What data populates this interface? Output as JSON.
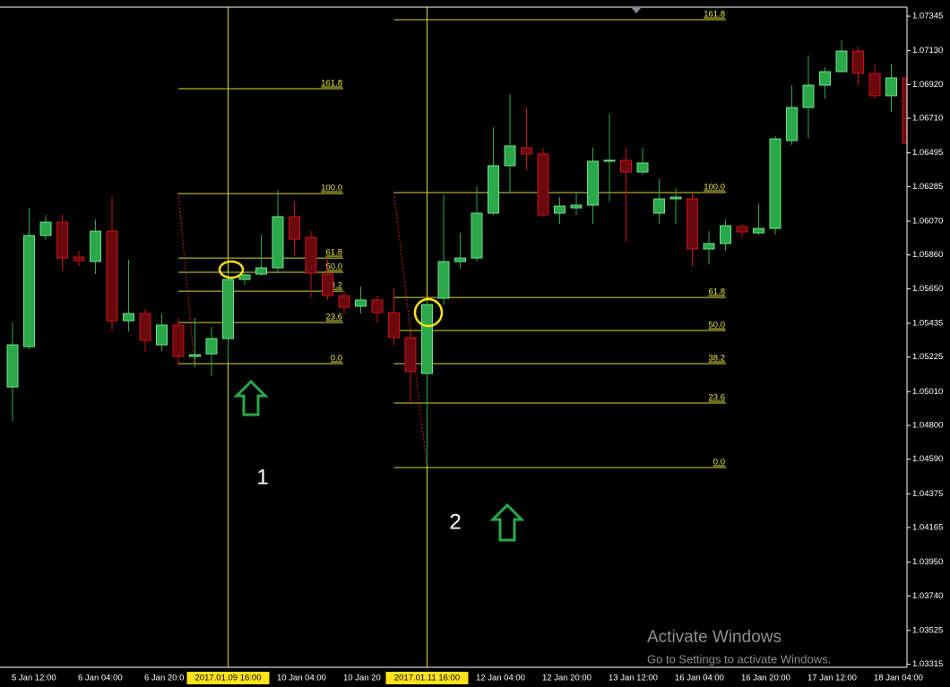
{
  "chart_data": {
    "type": "candlestick",
    "categories": [
      "5 Jan 12:00",
      null,
      null,
      null,
      "6 Jan 04:00",
      null,
      null,
      null,
      "6 Jan 20:0",
      null,
      null,
      null,
      null,
      "2017.01.09 16:00",
      null,
      null,
      "10 Jan 04:00",
      null,
      null,
      null,
      "10 Jan 20",
      null,
      null,
      null,
      null,
      "2017.01.11 16:00",
      null,
      null,
      "12 Jan 04:00",
      null,
      null,
      null,
      "12 Jan 20:00",
      null,
      null,
      null,
      "13 Jan 12:00",
      null,
      null,
      null,
      "16 Jan 04:00",
      null,
      null,
      null,
      "16 Jan 20:00",
      null,
      null,
      null,
      "17 Jan 12:00",
      null,
      null,
      null,
      "18 Jan 04:00",
      null,
      null
    ],
    "open": [
      1.05039,
      1.0529,
      1.05981,
      1.06064,
      1.05847,
      1.05819,
      1.06008,
      1.05451,
      1.05496,
      1.05301,
      1.05424,
      1.05229,
      1.05245,
      1.0534,
      1.05708,
      1.05741,
      1.0578,
      1.06098,
      1.0597,
      1.05741,
      1.05607,
      1.05541,
      1.0558,
      1.05502,
      1.05346,
      1.05123,
      1.05591,
      1.05819,
      1.05841,
      1.0612,
      1.06415,
      1.06527,
      1.06488,
      1.0612,
      1.06153,
      1.0617,
      1.06443,
      1.06449,
      1.06376,
      1.0612,
      1.06209,
      1.06209,
      1.05897,
      1.05931,
      1.06036,
      1.05997,
      1.06025,
      1.06571,
      1.06777,
      1.06916,
      1.07,
      1.07128,
      1.06989,
      1.0685,
      1.06961
    ],
    "high": [
      1.0544,
      1.06153,
      1.06109,
      1.06109,
      1.05886,
      1.06081,
      1.0622,
      1.0583,
      1.05524,
      1.05496,
      1.05468,
      1.05468,
      1.05413,
      1.05747,
      1.05747,
      1.05986,
      1.06265,
      1.06192,
      1.06008,
      1.0583,
      1.05635,
      1.05663,
      1.05607,
      1.05652,
      1.05385,
      1.0558,
      1.06231,
      1.05997,
      1.06287,
      1.06655,
      1.06861,
      1.06777,
      1.06527,
      1.0622,
      1.06248,
      1.06527,
      1.06738,
      1.06527,
      1.06527,
      1.06332,
      1.06276,
      1.06248,
      1.06008,
      1.06081,
      1.06053,
      1.06176,
      1.06599,
      1.06916,
      1.071,
      1.07028,
      1.07195,
      1.07156,
      1.07045,
      1.07045,
      1.06972
    ],
    "low": [
      1.04828,
      1.05273,
      1.05953,
      1.05763,
      1.05791,
      1.05741,
      1.05385,
      1.05385,
      1.05257,
      1.05262,
      1.05173,
      1.05162,
      1.05106,
      1.0519,
      1.05674,
      1.0573,
      1.05747,
      1.05858,
      1.05596,
      1.0558,
      1.05496,
      1.05496,
      1.0544,
      1.05301,
      1.04939,
      1.04549,
      1.05552,
      1.05775,
      1.05819,
      1.06109,
      1.06248,
      1.06387,
      1.06098,
      1.06053,
      1.06109,
      1.06053,
      1.06192,
      1.05942,
      1.06359,
      1.06053,
      1.06053,
      1.05791,
      1.05802,
      1.05886,
      1.0597,
      1.05986,
      1.05986,
      1.06543,
      1.06582,
      1.06833,
      1.07,
      1.06916,
      1.06833,
      1.06749,
      1.06543
    ],
    "close": [
      1.05301,
      1.05981,
      1.06064,
      1.05841,
      1.05825,
      1.06008,
      1.05451,
      1.05496,
      1.05329,
      1.05424,
      1.05229,
      1.0524,
      1.0534,
      1.05708,
      1.05736,
      1.0578,
      1.06098,
      1.05958,
      1.05747,
      1.05607,
      1.05535,
      1.0558,
      1.05502,
      1.05346,
      1.05134,
      1.05552,
      1.05819,
      1.05841,
      1.0612,
      1.06415,
      1.06538,
      1.06488,
      1.06109,
      1.06164,
      1.0617,
      1.06443,
      1.06449,
      1.06376,
      1.06432,
      1.06209,
      1.0622,
      1.05897,
      1.05931,
      1.06042,
      1.06003,
      1.06025,
      1.06582,
      1.06777,
      1.06916,
      1.07,
      1.07128,
      1.06989,
      1.0685,
      1.06961,
      1.06554
    ],
    "up_color": "#2aa84a",
    "down_color": "#c8121a",
    "ylim": [
      1.03296,
      1.07401
    ],
    "yticks": [
      1.07345,
      {
        "value": 1.0713,
        "label": "1.07130"
      },
      {
        "value": 1.0692,
        "label": "1.06920"
      },
      {
        "value": 1.0671,
        "label": "1.06710"
      },
      1.06495,
      1.06285,
      {
        "value": 1.0607,
        "label": "1.06070"
      },
      {
        "value": 1.0586,
        "label": "1.05860"
      },
      {
        "value": 1.0565,
        "label": "1.05650"
      },
      1.05435,
      1.05225,
      {
        "value": 1.0501,
        "label": "1.05010"
      },
      {
        "value": 1.048,
        "label": "1.04800"
      },
      {
        "value": 1.0459,
        "label": "1.04590"
      },
      1.04375,
      1.04165,
      {
        "value": 1.0395,
        "label": "1.03950"
      },
      {
        "value": 1.0374,
        "label": "1.03740"
      },
      1.03525,
      1.03315
    ],
    "fib_color": "#d8d83a",
    "fibonacci": [
      {
        "levels": [
          {
            "label": "161.8",
            "value": 1.06894
          },
          {
            "label": "100.0",
            "value": 1.06242
          },
          {
            "label": "61.8",
            "value": 1.05841
          },
          {
            "label": "50.0",
            "value": 1.05752
          },
          {
            "label": "38.2",
            "value": 1.05635
          },
          {
            "label": "23.6",
            "value": 1.0544
          },
          {
            "label": "0.0",
            "value": 1.05184
          }
        ]
      },
      {
        "levels": [
          {
            "label": "161.8",
            "value": 1.07323
          },
          {
            "label": "100.0",
            "value": 1.06248
          },
          {
            "label": "61.8",
            "value": 1.05596
          },
          {
            "label": "50.0",
            "value": 1.0539
          },
          {
            "label": "38.2",
            "value": 1.05184
          },
          {
            "label": "23.6",
            "value": 1.04939
          },
          {
            "label": "0.0",
            "value": 1.04538
          }
        ]
      }
    ],
    "annotations": [
      "1",
      "2"
    ],
    "watermark": [
      "Activate Windows",
      "Go to Settings to activate Windows."
    ]
  }
}
